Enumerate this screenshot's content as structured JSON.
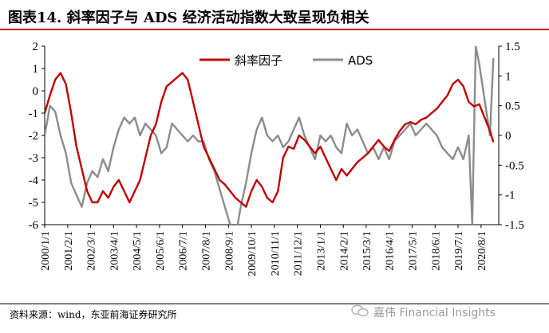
{
  "title": "图表14.  斜率因子与 ADS 经济活动指数大致呈现负相关",
  "source": "资料来源：wind，东亚前海证券研究所",
  "watermark": "嘉伟 Financial Insights",
  "colors": {
    "slope": "#c00000",
    "ads": "#8c8c8c",
    "title_rule": "#c00000"
  },
  "chart_data": {
    "type": "line",
    "title": "",
    "x_label_format": "YYYY/M/D",
    "xlim": [
      "2000-01-01",
      "2021-06-01"
    ],
    "xticks": [
      "2000/1/1",
      "2001/2/1",
      "2002/3/1",
      "2003/4/1",
      "2004/5/1",
      "2005/6/1",
      "2006/7/1",
      "2007/8/1",
      "2008/9/1",
      "2009/10/1",
      "2010/11/1",
      "2011/12/1",
      "2013/1/1",
      "2014/2/1",
      "2015/3/1",
      "2016/4/1",
      "2017/5/1",
      "2018/6/1",
      "2019/7/1",
      "2020/8/1"
    ],
    "y_left": {
      "ylim": [
        -6,
        2
      ],
      "ticks": [
        -6,
        -5,
        -4,
        -3,
        -2,
        -1,
        0,
        1,
        2
      ]
    },
    "y_right": {
      "ylim": [
        -1.5,
        1.5
      ],
      "ticks": [
        -1.5,
        -1,
        -0.5,
        0,
        0.5,
        1,
        1.5
      ]
    },
    "grid": false,
    "legend": "top-center",
    "series": [
      {
        "name": "斜率因子",
        "axis": "left",
        "points": [
          [
            "2000-01-01",
            -1.0
          ],
          [
            "2000-04-01",
            -0.2
          ],
          [
            "2000-07-01",
            0.5
          ],
          [
            "2000-10-01",
            0.8
          ],
          [
            "2001-01-01",
            0.3
          ],
          [
            "2001-04-01",
            -1.0
          ],
          [
            "2001-07-01",
            -2.5
          ],
          [
            "2001-10-01",
            -3.5
          ],
          [
            "2002-01-01",
            -4.5
          ],
          [
            "2002-04-01",
            -5.0
          ],
          [
            "2002-07-01",
            -5.0
          ],
          [
            "2002-10-01",
            -4.5
          ],
          [
            "2003-01-01",
            -4.8
          ],
          [
            "2003-04-01",
            -4.3
          ],
          [
            "2003-07-01",
            -4.0
          ],
          [
            "2003-10-01",
            -4.5
          ],
          [
            "2004-01-01",
            -5.0
          ],
          [
            "2004-04-01",
            -4.5
          ],
          [
            "2004-07-01",
            -4.0
          ],
          [
            "2004-10-01",
            -3.0
          ],
          [
            "2005-01-01",
            -2.0
          ],
          [
            "2005-04-01",
            -1.5
          ],
          [
            "2005-07-01",
            -0.5
          ],
          [
            "2005-10-01",
            0.2
          ],
          [
            "2006-01-01",
            0.4
          ],
          [
            "2006-04-01",
            0.6
          ],
          [
            "2006-07-01",
            0.8
          ],
          [
            "2006-10-01",
            0.5
          ],
          [
            "2007-01-01",
            -0.5
          ],
          [
            "2007-04-01",
            -1.5
          ],
          [
            "2007-07-01",
            -2.5
          ],
          [
            "2007-10-01",
            -3.0
          ],
          [
            "2008-01-01",
            -3.5
          ],
          [
            "2008-04-01",
            -4.0
          ],
          [
            "2008-07-01",
            -4.2
          ],
          [
            "2008-10-01",
            -4.5
          ],
          [
            "2009-01-01",
            -4.8
          ],
          [
            "2009-04-01",
            -5.0
          ],
          [
            "2009-07-01",
            -5.2
          ],
          [
            "2009-10-01",
            -4.5
          ],
          [
            "2010-01-01",
            -4.0
          ],
          [
            "2010-04-01",
            -4.3
          ],
          [
            "2010-07-01",
            -4.8
          ],
          [
            "2010-10-01",
            -5.0
          ],
          [
            "2011-01-01",
            -4.5
          ],
          [
            "2011-04-01",
            -3.0
          ],
          [
            "2011-07-01",
            -2.5
          ],
          [
            "2011-10-01",
            -2.6
          ],
          [
            "2012-01-01",
            -2.0
          ],
          [
            "2012-04-01",
            -2.2
          ],
          [
            "2012-07-01",
            -2.5
          ],
          [
            "2012-10-01",
            -2.8
          ],
          [
            "2013-01-01",
            -2.5
          ],
          [
            "2013-04-01",
            -3.0
          ],
          [
            "2013-07-01",
            -3.5
          ],
          [
            "2013-10-01",
            -4.0
          ],
          [
            "2014-01-01",
            -3.5
          ],
          [
            "2014-04-01",
            -3.8
          ],
          [
            "2014-07-01",
            -3.5
          ],
          [
            "2014-10-01",
            -3.2
          ],
          [
            "2015-01-01",
            -3.0
          ],
          [
            "2015-04-01",
            -2.8
          ],
          [
            "2015-07-01",
            -2.5
          ],
          [
            "2015-10-01",
            -2.2
          ],
          [
            "2016-01-01",
            -2.5
          ],
          [
            "2016-04-01",
            -2.7
          ],
          [
            "2016-07-01",
            -2.2
          ],
          [
            "2016-10-01",
            -1.8
          ],
          [
            "2017-01-01",
            -1.5
          ],
          [
            "2017-04-01",
            -1.4
          ],
          [
            "2017-07-01",
            -1.5
          ],
          [
            "2017-10-01",
            -1.3
          ],
          [
            "2018-01-01",
            -1.2
          ],
          [
            "2018-04-01",
            -1.0
          ],
          [
            "2018-07-01",
            -0.8
          ],
          [
            "2018-10-01",
            -0.5
          ],
          [
            "2019-01-01",
            -0.2
          ],
          [
            "2019-04-01",
            0.3
          ],
          [
            "2019-07-01",
            0.5
          ],
          [
            "2019-10-01",
            0.2
          ],
          [
            "2020-01-01",
            -0.5
          ],
          [
            "2020-04-01",
            -0.7
          ],
          [
            "2020-07-01",
            -0.6
          ],
          [
            "2020-10-01",
            -1.2
          ],
          [
            "2021-01-01",
            -1.8
          ],
          [
            "2021-03-01",
            -2.3
          ]
        ]
      },
      {
        "name": "ADS",
        "axis": "right",
        "points": [
          [
            "2000-01-01",
            0.0
          ],
          [
            "2000-04-01",
            0.5
          ],
          [
            "2000-07-01",
            0.4
          ],
          [
            "2000-10-01",
            0.0
          ],
          [
            "2001-01-01",
            -0.3
          ],
          [
            "2001-04-01",
            -0.8
          ],
          [
            "2001-07-01",
            -1.0
          ],
          [
            "2001-10-01",
            -1.2
          ],
          [
            "2002-01-01",
            -0.8
          ],
          [
            "2002-04-01",
            -0.6
          ],
          [
            "2002-07-01",
            -0.7
          ],
          [
            "2002-10-01",
            -0.4
          ],
          [
            "2003-01-01",
            -0.6
          ],
          [
            "2003-04-01",
            -0.2
          ],
          [
            "2003-07-01",
            0.1
          ],
          [
            "2003-10-01",
            0.3
          ],
          [
            "2004-01-01",
            0.2
          ],
          [
            "2004-04-01",
            0.3
          ],
          [
            "2004-07-01",
            0.0
          ],
          [
            "2004-10-01",
            0.2
          ],
          [
            "2005-01-01",
            0.1
          ],
          [
            "2005-04-01",
            0.0
          ],
          [
            "2005-07-01",
            -0.3
          ],
          [
            "2005-10-01",
            -0.2
          ],
          [
            "2006-01-01",
            0.2
          ],
          [
            "2006-04-01",
            0.1
          ],
          [
            "2006-07-01",
            0.0
          ],
          [
            "2006-10-01",
            -0.1
          ],
          [
            "2007-01-01",
            0.0
          ],
          [
            "2007-04-01",
            -0.1
          ],
          [
            "2007-07-01",
            -0.1
          ],
          [
            "2007-10-01",
            -0.4
          ],
          [
            "2008-01-01",
            -0.6
          ],
          [
            "2008-04-01",
            -0.9
          ],
          [
            "2008-07-01",
            -1.2
          ],
          [
            "2008-10-01",
            -1.5
          ],
          [
            "2009-01-01",
            -1.7
          ],
          [
            "2009-04-01",
            -1.2
          ],
          [
            "2009-07-01",
            -0.8
          ],
          [
            "2009-10-01",
            -0.3
          ],
          [
            "2010-01-01",
            0.1
          ],
          [
            "2010-04-01",
            0.3
          ],
          [
            "2010-07-01",
            0.0
          ],
          [
            "2010-10-01",
            -0.1
          ],
          [
            "2011-01-01",
            0.0
          ],
          [
            "2011-04-01",
            -0.2
          ],
          [
            "2011-07-01",
            -0.1
          ],
          [
            "2011-10-01",
            0.1
          ],
          [
            "2012-01-01",
            0.3
          ],
          [
            "2012-04-01",
            0.0
          ],
          [
            "2012-07-01",
            -0.2
          ],
          [
            "2012-10-01",
            -0.4
          ],
          [
            "2013-01-01",
            0.0
          ],
          [
            "2013-04-01",
            -0.1
          ],
          [
            "2013-07-01",
            0.0
          ],
          [
            "2013-10-01",
            -0.2
          ],
          [
            "2014-01-01",
            -0.3
          ],
          [
            "2014-04-01",
            0.2
          ],
          [
            "2014-07-01",
            0.0
          ],
          [
            "2014-10-01",
            0.1
          ],
          [
            "2015-01-01",
            -0.1
          ],
          [
            "2015-04-01",
            -0.3
          ],
          [
            "2015-07-01",
            -0.2
          ],
          [
            "2015-10-01",
            -0.4
          ],
          [
            "2016-01-01",
            -0.2
          ],
          [
            "2016-04-01",
            -0.4
          ],
          [
            "2016-07-01",
            -0.1
          ],
          [
            "2016-10-01",
            0.0
          ],
          [
            "2017-01-01",
            0.1
          ],
          [
            "2017-04-01",
            0.2
          ],
          [
            "2017-07-01",
            0.0
          ],
          [
            "2017-10-01",
            0.1
          ],
          [
            "2018-01-01",
            0.2
          ],
          [
            "2018-04-01",
            0.1
          ],
          [
            "2018-07-01",
            0.0
          ],
          [
            "2018-10-01",
            -0.2
          ],
          [
            "2019-01-01",
            -0.3
          ],
          [
            "2019-04-01",
            -0.4
          ],
          [
            "2019-07-01",
            -0.2
          ],
          [
            "2019-10-01",
            -0.4
          ],
          [
            "2020-01-01",
            0.0
          ],
          [
            "2020-03-01",
            -1.5
          ],
          [
            "2020-05-01",
            1.5
          ],
          [
            "2020-07-01",
            1.2
          ],
          [
            "2020-10-01",
            0.6
          ],
          [
            "2021-01-01",
            0.0
          ],
          [
            "2021-03-01",
            1.3
          ]
        ]
      }
    ]
  }
}
